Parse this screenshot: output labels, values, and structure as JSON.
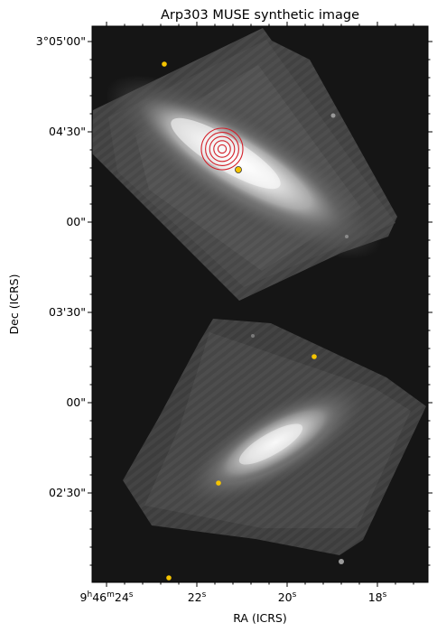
{
  "figure": {
    "title": "Arp303 MUSE synthetic image",
    "xlabel": "RA (ICRS)",
    "ylabel": "Dec (ICRS)",
    "colormap": "grayscale",
    "background_color": "#151515",
    "marker_ring_color": "#d4202a",
    "source_marker_color": "#f5c400",
    "x_tick_labels": [
      "9h46m24s",
      "22s",
      "20s",
      "18s"
    ],
    "y_tick_labels": [
      "3°05'00\"",
      "04'30\"",
      "00\"",
      "03'30\"",
      "00\"",
      "02'30\""
    ],
    "marker_ring_count": 5
  }
}
